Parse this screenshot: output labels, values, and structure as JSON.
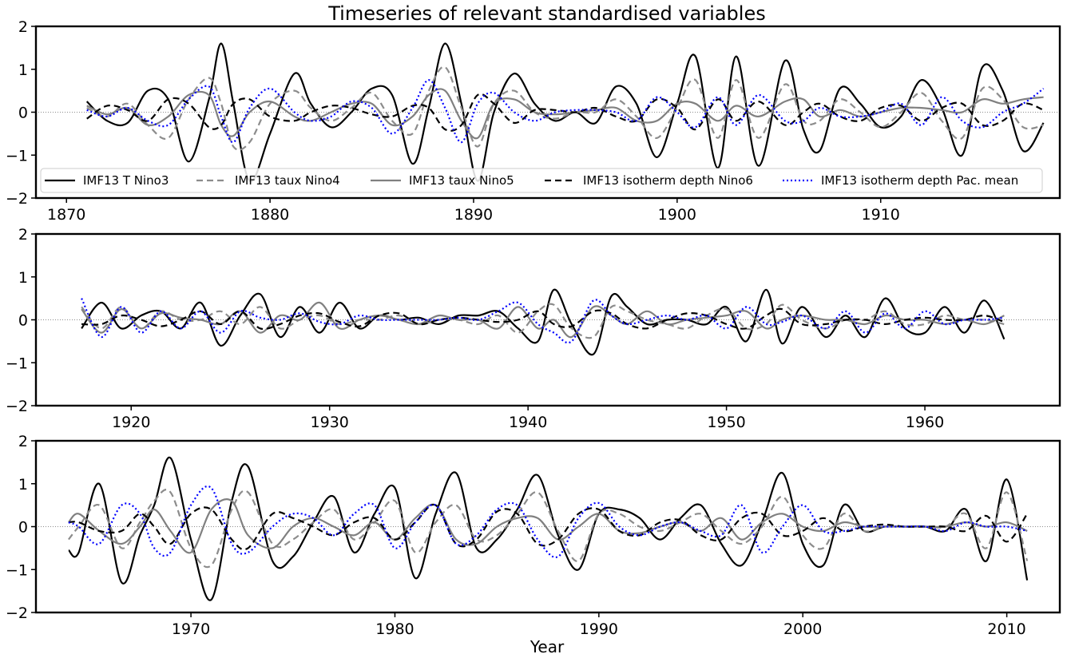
{
  "chart_data": {
    "type": "line",
    "title": "Timeseries of relevant standardised variables",
    "xlabel": "Year",
    "ylabel": "",
    "legend_position": "bottom, inside top panel",
    "grid": false,
    "zero_line": true,
    "series": [
      {
        "name": "IMF13 T Nino3",
        "color": "#000000",
        "style": "solid"
      },
      {
        "name": "IMF13 taux Nino4",
        "color": "#8c8c8c",
        "style": "dashed"
      },
      {
        "name": "IMF13 taux Nino5",
        "color": "#808080",
        "style": "solid"
      },
      {
        "name": "IMF13 isotherm depth Nino6",
        "color": "#000000",
        "style": "dashed"
      },
      {
        "name": "IMF13 isotherm depth Pac. mean",
        "color": "#0000ff",
        "style": "dotted"
      }
    ],
    "panels": [
      {
        "xlim": [
          1868.5,
          1918.8
        ],
        "ylim": [
          -2,
          2
        ],
        "xticks": [
          1870,
          1880,
          1890,
          1900,
          1910
        ],
        "yticks": [
          -2,
          -1,
          0,
          1,
          2
        ],
        "x": [
          1871,
          1872,
          1873,
          1874,
          1875,
          1876,
          1877,
          1877.6,
          1878.2,
          1879,
          1880,
          1881.2,
          1882,
          1883,
          1884,
          1885,
          1886,
          1887,
          1887.8,
          1888.6,
          1889.4,
          1890.2,
          1891,
          1892,
          1893,
          1894,
          1895,
          1896,
          1897,
          1898,
          1899,
          1900,
          1900.9,
          1902,
          1902.9,
          1904,
          1905.3,
          1906.2,
          1907,
          1908,
          1909,
          1910,
          1911,
          1912,
          1913,
          1914,
          1915,
          1916,
          1917,
          1918
        ],
        "values": [
          [
            0.25,
            -0.2,
            -0.25,
            0.5,
            0.3,
            -1.15,
            0.3,
            1.6,
            0.2,
            -1.6,
            -0.5,
            0.9,
            0.2,
            -0.35,
            0.0,
            0.55,
            0.4,
            -1.2,
            0.1,
            1.6,
            0.2,
            -1.6,
            0.0,
            0.9,
            0.2,
            -0.2,
            0.0,
            -0.25,
            0.6,
            0.2,
            -1.05,
            0.2,
            1.3,
            -1.3,
            1.3,
            -1.25,
            1.2,
            -0.4,
            -0.9,
            0.55,
            0.2,
            -0.35,
            -0.1,
            0.75,
            0.1,
            -1.0,
            1.05,
            0.5,
            -0.9,
            -0.25
          ],
          [
            0.1,
            -0.1,
            0.2,
            -0.3,
            -0.6,
            0.3,
            0.8,
            0.2,
            -0.8,
            -0.7,
            0.2,
            0.5,
            0.1,
            -0.2,
            0.1,
            0.45,
            -0.2,
            -0.5,
            0.5,
            1.05,
            0.1,
            -0.8,
            0.2,
            0.5,
            0.0,
            -0.15,
            0.0,
            0.0,
            0.3,
            -0.1,
            -0.6,
            0.1,
            0.75,
            -0.6,
            0.75,
            -0.6,
            0.65,
            -0.2,
            -0.2,
            0.3,
            0.0,
            -0.35,
            0.0,
            0.45,
            -0.2,
            -0.6,
            0.55,
            0.3,
            -0.35,
            -0.3
          ],
          [
            0.15,
            -0.05,
            0.1,
            -0.3,
            -0.1,
            0.4,
            0.4,
            -0.3,
            -0.55,
            0.0,
            0.25,
            -0.1,
            -0.2,
            0.0,
            0.2,
            0.2,
            -0.3,
            -0.1,
            0.4,
            0.5,
            -0.2,
            -0.6,
            0.2,
            0.3,
            0.0,
            -0.05,
            0.0,
            0.05,
            0.1,
            -0.2,
            -0.2,
            0.2,
            0.2,
            -0.2,
            0.15,
            -0.1,
            0.25,
            0.3,
            -0.1,
            0.05,
            -0.1,
            0.0,
            0.1,
            0.1,
            0.05,
            0.0,
            0.3,
            0.2,
            0.3,
            0.35
          ],
          [
            -0.15,
            0.15,
            0.05,
            -0.2,
            0.3,
            0.2,
            -0.35,
            -0.3,
            0.2,
            0.3,
            -0.1,
            -0.2,
            0.0,
            0.15,
            0.1,
            -0.05,
            -0.1,
            0.15,
            0.1,
            -0.4,
            -0.3,
            0.4,
            0.2,
            -0.25,
            0.05,
            0.05,
            0.0,
            0.1,
            -0.1,
            -0.2,
            0.3,
            0.1,
            -0.4,
            0.3,
            -0.2,
            0.25,
            -0.3,
            0.0,
            0.2,
            -0.1,
            -0.2,
            0.1,
            0.15,
            -0.2,
            0.1,
            0.2,
            -0.3,
            -0.2,
            0.2,
            0.05
          ],
          [
            0.05,
            -0.1,
            0.1,
            -0.2,
            -0.3,
            0.3,
            0.6,
            -0.1,
            -0.7,
            0.1,
            0.55,
            0.0,
            -0.2,
            -0.1,
            0.25,
            0.1,
            -0.5,
            0.1,
            0.75,
            0.1,
            -0.7,
            0.2,
            0.45,
            0.0,
            -0.2,
            0.0,
            0.05,
            0.05,
            0.0,
            -0.2,
            0.35,
            0.0,
            -0.35,
            0.35,
            -0.3,
            0.4,
            -0.2,
            -0.2,
            0.1,
            -0.1,
            -0.1,
            0.0,
            0.2,
            -0.3,
            0.35,
            -0.2,
            -0.35,
            0.0,
            0.2,
            0.55
          ]
        ]
      },
      {
        "xlim": [
          1915.2,
          1966.8
        ],
        "ylim": [
          -2,
          2
        ],
        "xticks": [
          1920,
          1930,
          1940,
          1950,
          1960
        ],
        "yticks": [
          -2,
          -1,
          0,
          1,
          2
        ],
        "x": [
          1917.5,
          1918.5,
          1919.5,
          1920.5,
          1921.5,
          1922.5,
          1923.5,
          1924.5,
          1925.5,
          1926.5,
          1927.5,
          1928.5,
          1929.5,
          1930.5,
          1931.5,
          1932.5,
          1933.5,
          1934.5,
          1935.5,
          1936.5,
          1937.5,
          1938.5,
          1939.5,
          1940.5,
          1941.3,
          1942.2,
          1943.3,
          1944.2,
          1945,
          1946,
          1947,
          1948,
          1949,
          1950,
          1951,
          1952,
          1952.8,
          1953.8,
          1955,
          1956,
          1957,
          1958,
          1959,
          1960,
          1961,
          1962,
          1963,
          1964
        ],
        "values": [
          [
            -0.2,
            0.4,
            -0.2,
            0.1,
            0.2,
            -0.2,
            0.4,
            -0.6,
            0.1,
            0.6,
            -0.4,
            0.3,
            -0.3,
            0.4,
            -0.2,
            0.1,
            0.0,
            0.05,
            -0.1,
            0.1,
            0.1,
            0.2,
            -0.2,
            -0.5,
            0.7,
            -0.1,
            -0.8,
            0.55,
            0.3,
            -0.1,
            0.0,
            0.0,
            -0.1,
            0.3,
            -0.5,
            0.7,
            -0.55,
            0.3,
            -0.4,
            0.1,
            -0.4,
            0.5,
            -0.2,
            -0.3,
            0.3,
            -0.3,
            0.45,
            -0.45
          ],
          [
            0.3,
            -0.2,
            0.3,
            -0.2,
            0.2,
            0.0,
            0.0,
            0.2,
            -0.1,
            0.3,
            -0.2,
            0.0,
            0.1,
            -0.1,
            0.0,
            0.0,
            0.1,
            -0.1,
            0.0,
            0.0,
            -0.1,
            0.1,
            -0.3,
            0.2,
            0.35,
            -0.2,
            -0.4,
            0.3,
            0.2,
            0.0,
            -0.1,
            -0.2,
            0.1,
            0.25,
            -0.2,
            -0.1,
            0.35,
            0.0,
            -0.2,
            0.0,
            0.0,
            0.2,
            -0.1,
            -0.1,
            0.1,
            0.0,
            0.0,
            -0.1
          ],
          [
            0.25,
            -0.3,
            0.25,
            -0.2,
            0.15,
            0.05,
            0.0,
            -0.1,
            0.2,
            -0.3,
            0.1,
            0.0,
            0.4,
            -0.2,
            0.0,
            0.1,
            0.0,
            -0.1,
            0.1,
            0.0,
            0.0,
            -0.2,
            0.3,
            -0.2,
            0.0,
            -0.4,
            0.3,
            0.1,
            -0.1,
            0.2,
            -0.1,
            0.0,
            0.05,
            0.1,
            0.2,
            -0.2,
            0.0,
            0.1,
            0.0,
            0.0,
            -0.1,
            0.1,
            0.0,
            0.0,
            -0.1,
            0.0,
            -0.1,
            0.1
          ],
          [
            -0.1,
            -0.1,
            0.1,
            0.0,
            -0.15,
            0.0,
            0.2,
            -0.1,
            0.2,
            -0.2,
            -0.1,
            0.1,
            0.15,
            -0.05,
            -0.15,
            0.1,
            0.15,
            -0.1,
            0.0,
            0.05,
            0.0,
            -0.05,
            0.0,
            0.2,
            -0.1,
            -0.15,
            0.2,
            0.15,
            -0.1,
            -0.2,
            0.0,
            0.15,
            0.1,
            -0.1,
            -0.2,
            0.1,
            0.25,
            -0.1,
            -0.1,
            0.0,
            0.0,
            -0.1,
            0.0,
            0.05,
            0.0,
            0.0,
            0.1,
            -0.05
          ],
          [
            0.5,
            -0.4,
            0.3,
            -0.3,
            0.2,
            -0.2,
            0.2,
            -0.3,
            0.2,
            0.05,
            0.0,
            0.15,
            -0.05,
            -0.1,
            0.1,
            0.0,
            0.0,
            0.0,
            0.0,
            0.05,
            0.0,
            0.2,
            0.4,
            -0.1,
            -0.3,
            -0.5,
            0.45,
            0.1,
            -0.1,
            0.0,
            0.1,
            0.0,
            0.1,
            -0.2,
            0.3,
            -0.1,
            -0.05,
            0.1,
            -0.2,
            0.2,
            -0.3,
            0.15,
            -0.2,
            0.2,
            -0.1,
            0.0,
            0.0,
            0.05
          ]
        ]
      },
      {
        "xlim": [
          1962.4,
          2012.6
        ],
        "ylim": [
          -2,
          2
        ],
        "xticks": [
          1970,
          1980,
          1990,
          2000,
          2010
        ],
        "yticks": [
          -2,
          -1,
          0,
          1,
          2
        ],
        "x": [
          1964,
          1964.5,
          1965.5,
          1966.6,
          1967.5,
          1968.2,
          1969,
          1970,
          1971,
          1972,
          1972.8,
          1974,
          1975,
          1976,
          1977,
          1978,
          1979,
          1980,
          1981,
          1982,
          1983,
          1984,
          1985,
          1986,
          1987,
          1988,
          1989,
          1990,
          1991,
          1992,
          1993,
          1994,
          1995,
          1996,
          1997,
          1998,
          1999,
          2000,
          2001,
          2002,
          2003,
          2004,
          2005,
          2006,
          2007,
          2008,
          2009,
          2010,
          2011
        ],
        "values": [
          [
            -0.55,
            -0.6,
            1.0,
            -1.3,
            -0.2,
            0.5,
            1.6,
            -0.3,
            -1.7,
            0.6,
            1.4,
            -0.8,
            -0.7,
            0.1,
            0.7,
            -0.6,
            0.3,
            0.9,
            -1.2,
            0.3,
            1.25,
            -0.5,
            -0.3,
            0.4,
            1.2,
            -0.2,
            -1.0,
            0.3,
            0.4,
            0.2,
            -0.3,
            0.2,
            0.5,
            -0.4,
            -0.9,
            0.1,
            1.25,
            -0.4,
            -0.9,
            0.5,
            -0.1,
            0.0,
            0.0,
            0.0,
            -0.1,
            0.4,
            -0.8,
            1.1,
            -1.25
          ],
          [
            -0.3,
            0.0,
            0.5,
            -0.5,
            0.1,
            0.6,
            0.8,
            -0.5,
            -0.9,
            0.4,
            0.8,
            -0.4,
            -0.3,
            0.1,
            0.4,
            -0.3,
            0.1,
            0.6,
            -0.6,
            0.1,
            0.5,
            -0.3,
            -0.2,
            0.3,
            0.8,
            -0.1,
            -0.8,
            0.3,
            0.3,
            0.0,
            -0.1,
            0.1,
            0.3,
            -0.1,
            -0.4,
            0.0,
            0.7,
            -0.2,
            -0.5,
            0.3,
            -0.1,
            0.0,
            0.0,
            0.0,
            0.0,
            0.3,
            -0.5,
            0.8,
            -0.8
          ],
          [
            0.1,
            0.3,
            -0.1,
            -0.4,
            0.0,
            0.4,
            -0.1,
            -0.6,
            0.4,
            0.6,
            -0.2,
            -0.5,
            0.0,
            0.2,
            0.0,
            -0.2,
            0.1,
            -0.3,
            0.2,
            0.5,
            -0.3,
            -0.4,
            0.0,
            0.2,
            0.2,
            -0.3,
            0.0,
            0.3,
            -0.1,
            -0.15,
            0.0,
            0.1,
            -0.1,
            0.2,
            -0.3,
            0.1,
            0.3,
            0.0,
            -0.1,
            0.1,
            0.0,
            0.0,
            0.0,
            0.0,
            0.0,
            0.1,
            0.0,
            0.1,
            -0.1
          ],
          [
            0.1,
            0.1,
            -0.1,
            -0.1,
            0.3,
            0.0,
            -0.4,
            0.3,
            0.4,
            -0.3,
            -0.5,
            0.3,
            0.2,
            0.0,
            -0.2,
            0.1,
            0.2,
            -0.3,
            0.1,
            0.5,
            -0.4,
            -0.3,
            0.35,
            0.3,
            -0.4,
            -0.3,
            0.3,
            0.4,
            -0.1,
            -0.2,
            0.1,
            0.15,
            -0.2,
            -0.3,
            0.2,
            0.3,
            -0.2,
            -0.1,
            0.2,
            -0.1,
            0.0,
            0.05,
            0.0,
            0.0,
            0.0,
            -0.1,
            0.25,
            -0.35,
            0.3
          ],
          [
            0.1,
            0.0,
            -0.4,
            0.5,
            0.3,
            -0.5,
            -0.6,
            0.5,
            0.9,
            -0.4,
            -0.6,
            0.0,
            0.3,
            0.2,
            -0.2,
            0.3,
            0.5,
            -0.5,
            0.1,
            0.5,
            -0.4,
            -0.2,
            0.4,
            0.5,
            -0.3,
            -0.7,
            0.2,
            0.55,
            0.0,
            -0.2,
            0.0,
            0.1,
            -0.1,
            -0.2,
            0.5,
            -0.6,
            0.0,
            0.5,
            -0.1,
            -0.1,
            0.0,
            0.0,
            0.0,
            0.0,
            -0.1,
            0.1,
            0.0,
            0.0,
            -0.1
          ]
        ]
      }
    ]
  }
}
